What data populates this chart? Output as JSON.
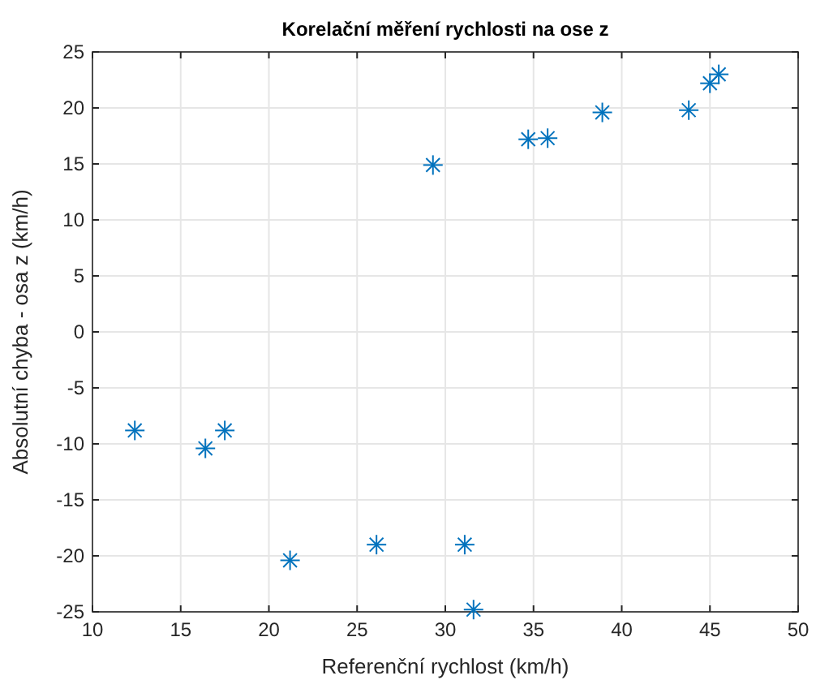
{
  "chart_data": {
    "type": "scatter",
    "title": "Korelační měření rychlosti na ose z",
    "xlabel": "Referenční rychlost (km/h)",
    "ylabel": "Absolutní chyba - osa z (km/h)",
    "x": [
      12.4,
      16.4,
      17.5,
      21.2,
      26.1,
      31.1,
      31.6,
      29.3,
      34.7,
      35.8,
      38.9,
      43.8,
      45.0,
      45.5
    ],
    "series": [
      {
        "color": "#0072bd",
        "values": [
          -8.8,
          -10.4,
          -8.8,
          -20.4,
          -19.0,
          -19.0,
          -24.8,
          14.9,
          17.2,
          17.3,
          19.6,
          19.8,
          22.2,
          23.0
        ]
      }
    ],
    "xlim": [
      10,
      50
    ],
    "xticks": [
      10,
      15,
      20,
      25,
      30,
      35,
      40,
      45,
      50
    ],
    "ylim": [
      -25,
      25
    ],
    "yticks": [
      -25,
      -20,
      -15,
      -10,
      -5,
      0,
      5,
      10,
      15,
      20,
      25
    ],
    "grid": true,
    "marker": "cross"
  }
}
